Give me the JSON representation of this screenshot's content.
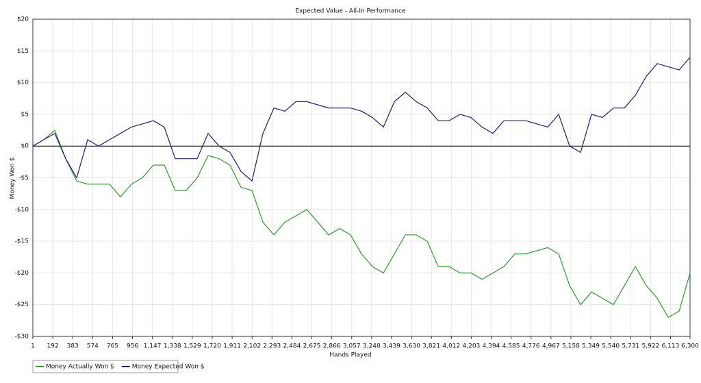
{
  "chart_data": {
    "type": "line",
    "title": "Expected Value - All-In Performance",
    "x_label": "Hands Played",
    "y_label": "Money Won $",
    "x": [
      1,
      106,
      211,
      316,
      421,
      526,
      631,
      736,
      841,
      946,
      1051,
      1156,
      1261,
      1366,
      1471,
      1576,
      1681,
      1786,
      1891,
      1996,
      2101,
      2206,
      2311,
      2416,
      2521,
      2626,
      2731,
      2836,
      2941,
      3046,
      3151,
      3256,
      3361,
      3466,
      3571,
      3676,
      3781,
      3886,
      3991,
      4096,
      4201,
      4306,
      4411,
      4516,
      4621,
      4726,
      4831,
      4936,
      5041,
      5146,
      5251,
      5356,
      5461,
      5566,
      5671,
      5776,
      5881,
      5986,
      6091,
      6196,
      6300
    ],
    "series": [
      {
        "name": "Money Actually Won $",
        "color": "#2e9a2e",
        "values": [
          0,
          1,
          2.5,
          -2,
          -5.5,
          -6,
          -6,
          -6,
          -8,
          -6,
          -5,
          -3,
          -3,
          -7,
          -7,
          -5,
          -1.5,
          -2,
          -3,
          -6.5,
          -7,
          -12,
          -14,
          -12,
          -11,
          -10,
          -12,
          -14,
          -13,
          -14,
          -17,
          -19,
          -20,
          -17,
          -14,
          -14,
          -15,
          -19,
          -19,
          -20,
          -20,
          -21,
          -20,
          -19,
          -17,
          -17,
          -16.5,
          -16,
          -17,
          -22,
          -25,
          -23,
          -24,
          -25,
          -22,
          -19,
          -22,
          -24,
          -27,
          -26,
          -20
        ]
      },
      {
        "name": "Money Expected Won $",
        "color": "#1c1c80",
        "values": [
          0,
          1,
          2,
          -2,
          -5,
          1,
          0,
          1,
          2,
          3,
          3.5,
          4,
          3,
          -2,
          -2,
          -2,
          2,
          0,
          -1,
          -4,
          -5.5,
          2,
          6,
          5.5,
          7,
          7,
          6.5,
          6,
          6,
          6,
          5.5,
          4.5,
          3,
          7,
          8.5,
          7,
          6,
          4,
          4,
          5,
          4.5,
          3,
          2,
          4,
          4,
          4,
          3.5,
          3,
          5,
          0,
          -1,
          5,
          4.5,
          6,
          6,
          8,
          11,
          13,
          12.5,
          12,
          14
        ]
      }
    ],
    "xlim": [
      1,
      6300
    ],
    "xticks": [
      1,
      192,
      383,
      574,
      765,
      956,
      {
        "value": 1147,
        "label": "1,147"
      },
      {
        "value": 1338,
        "label": "1,338"
      },
      {
        "value": 1529,
        "label": "1,529"
      },
      {
        "value": 1720,
        "label": "1,720"
      },
      {
        "value": 1911,
        "label": "1,911"
      },
      {
        "value": 2102,
        "label": "2,102"
      },
      {
        "value": 2293,
        "label": "2,293"
      },
      {
        "value": 2484,
        "label": "2,484"
      },
      {
        "value": 2675,
        "label": "2,675"
      },
      {
        "value": 2866,
        "label": "2,866"
      },
      {
        "value": 3057,
        "label": "3,057"
      },
      {
        "value": 3248,
        "label": "3,248"
      },
      {
        "value": 3439,
        "label": "3,439"
      },
      {
        "value": 3630,
        "label": "3,630"
      },
      {
        "value": 3821,
        "label": "3,821"
      },
      {
        "value": 4012,
        "label": "4,012"
      },
      {
        "value": 4203,
        "label": "4,203"
      },
      {
        "value": 4394,
        "label": "4,394"
      },
      {
        "value": 4585,
        "label": "4,585"
      },
      {
        "value": 4776,
        "label": "4,776"
      },
      {
        "value": 4967,
        "label": "4,967"
      },
      {
        "value": 5158,
        "label": "5,158"
      },
      {
        "value": 5349,
        "label": "5,349"
      },
      {
        "value": 5540,
        "label": "5,540"
      },
      {
        "value": 5731,
        "label": "5,731"
      },
      {
        "value": 5922,
        "label": "5,922"
      },
      {
        "value": 6113,
        "label": "6,113"
      },
      {
        "value": 6300,
        "label": "6,300"
      }
    ],
    "ylim": [
      -30,
      20
    ],
    "yticks": [
      {
        "value": -30,
        "label": "-$30"
      },
      {
        "value": -25,
        "label": "-$25"
      },
      {
        "value": -20,
        "label": "-$20"
      },
      {
        "value": -15,
        "label": "-$15"
      },
      {
        "value": -10,
        "label": "-$10"
      },
      {
        "value": -5,
        "label": "-$5"
      },
      {
        "value": 0,
        "label": "$0"
      },
      {
        "value": 5,
        "label": "$5"
      },
      {
        "value": 10,
        "label": "$10"
      },
      {
        "value": 15,
        "label": "$15"
      },
      {
        "value": 20,
        "label": "$20"
      }
    ],
    "grid": true
  }
}
